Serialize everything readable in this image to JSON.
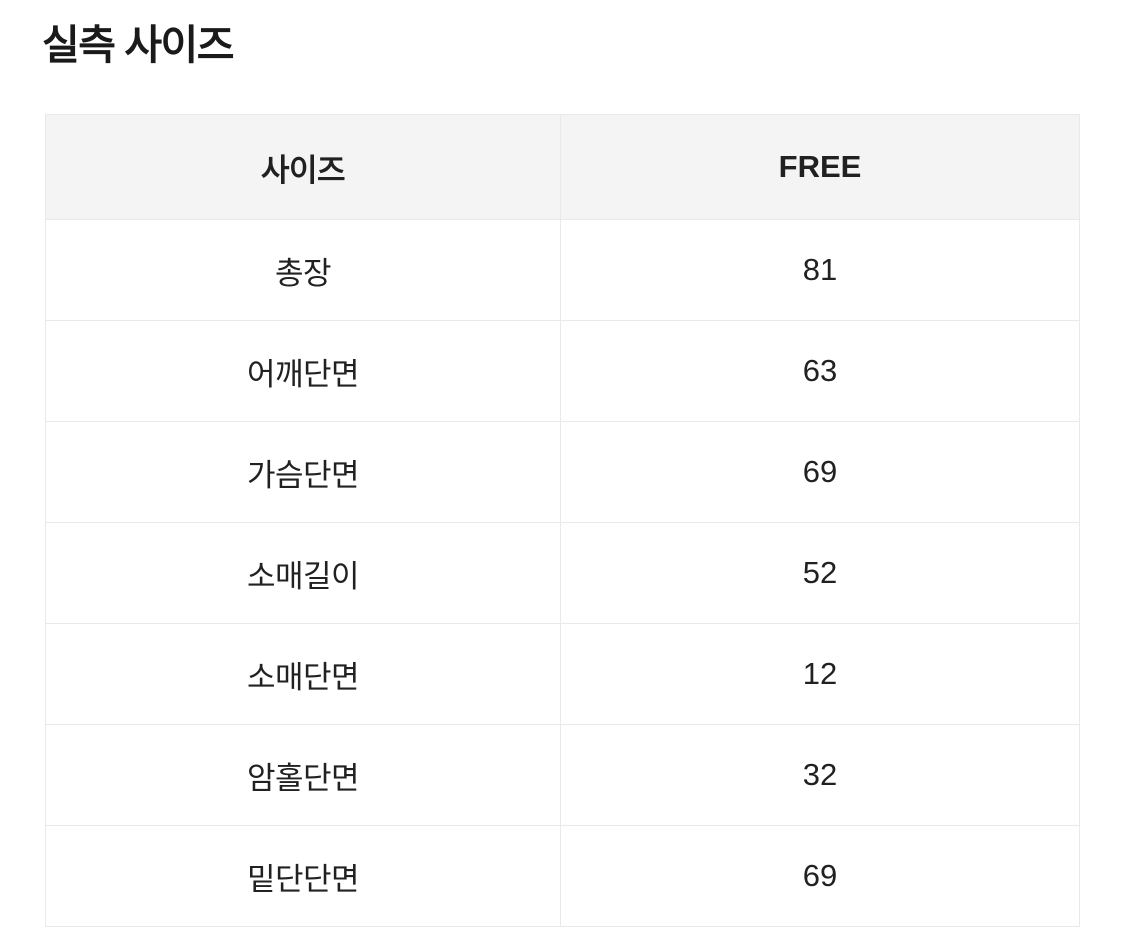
{
  "page": {
    "title": "실측 사이즈"
  },
  "size_table": {
    "columns": [
      "사이즈",
      "FREE"
    ],
    "rows": [
      {
        "label": "총장",
        "value": "81"
      },
      {
        "label": "어깨단면",
        "value": "63"
      },
      {
        "label": "가슴단면",
        "value": "69"
      },
      {
        "label": "소매길이",
        "value": "52"
      },
      {
        "label": "소매단면",
        "value": "12"
      },
      {
        "label": "암홀단면",
        "value": "32"
      },
      {
        "label": "밑단단면",
        "value": "69"
      }
    ]
  },
  "colors": {
    "header_bg": "#f4f4f4",
    "border": "#e9e9e9",
    "text": "#212121"
  }
}
